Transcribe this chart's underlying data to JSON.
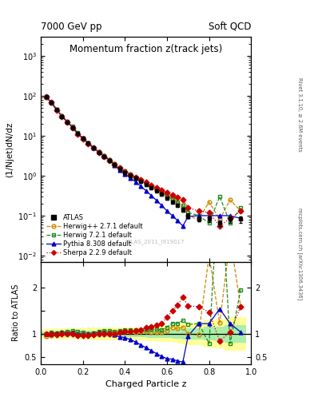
{
  "title": "Momentum fraction z(track jets)",
  "top_left_label": "7000 GeV pp",
  "top_right_label": "Soft QCD",
  "right_label_top": "Rivet 3.1.10, ≥ 2.6M events",
  "right_label_bottom": "mcplots.cern.ch [arXiv:1306.3436]",
  "watermark": "ATLAS_2011_I919017",
  "xlabel": "Charged Particle z",
  "ylabel_main": "(1/Njet)dN/dz",
  "ylabel_ratio": "Ratio to ATLAS",
  "atlas_x": [
    0.025,
    0.05,
    0.075,
    0.1,
    0.125,
    0.15,
    0.175,
    0.2,
    0.225,
    0.25,
    0.275,
    0.3,
    0.325,
    0.35,
    0.375,
    0.4,
    0.425,
    0.45,
    0.475,
    0.5,
    0.525,
    0.55,
    0.575,
    0.6,
    0.625,
    0.65,
    0.675,
    0.7,
    0.75,
    0.8,
    0.85,
    0.9,
    0.95
  ],
  "atlas_y": [
    95,
    68,
    45,
    30,
    22,
    16,
    11.5,
    8.5,
    6.5,
    5.0,
    3.8,
    3.0,
    2.4,
    1.9,
    1.5,
    1.2,
    1.0,
    0.85,
    0.72,
    0.6,
    0.5,
    0.42,
    0.35,
    0.28,
    0.22,
    0.18,
    0.14,
    0.1,
    0.082,
    0.082,
    0.065,
    0.082,
    0.082
  ],
  "atlas_yerr": [
    5,
    3.5,
    2.5,
    1.8,
    1.2,
    0.9,
    0.65,
    0.5,
    0.4,
    0.32,
    0.25,
    0.2,
    0.16,
    0.13,
    0.1,
    0.08,
    0.07,
    0.06,
    0.05,
    0.04,
    0.04,
    0.03,
    0.03,
    0.025,
    0.02,
    0.018,
    0.015,
    0.012,
    0.01,
    0.012,
    0.01,
    0.015,
    0.015
  ],
  "herwig_pp_x": [
    0.025,
    0.05,
    0.075,
    0.1,
    0.125,
    0.15,
    0.175,
    0.2,
    0.225,
    0.25,
    0.275,
    0.3,
    0.325,
    0.35,
    0.375,
    0.4,
    0.425,
    0.45,
    0.475,
    0.5,
    0.525,
    0.55,
    0.575,
    0.6,
    0.625,
    0.65,
    0.675,
    0.7,
    0.75,
    0.8,
    0.85,
    0.9,
    0.95
  ],
  "herwig_pp_y": [
    90,
    65,
    44,
    31,
    22,
    16,
    11,
    8.5,
    6.5,
    5.0,
    3.9,
    3.1,
    2.5,
    1.95,
    1.55,
    1.25,
    1.05,
    0.88,
    0.75,
    0.63,
    0.52,
    0.43,
    0.36,
    0.3,
    0.25,
    0.2,
    0.16,
    0.1,
    0.08,
    0.22,
    0.08,
    0.25,
    0.13
  ],
  "herwig7_x": [
    0.025,
    0.05,
    0.075,
    0.1,
    0.125,
    0.15,
    0.175,
    0.2,
    0.225,
    0.25,
    0.275,
    0.3,
    0.325,
    0.35,
    0.375,
    0.4,
    0.425,
    0.45,
    0.475,
    0.5,
    0.525,
    0.55,
    0.575,
    0.6,
    0.625,
    0.65,
    0.675,
    0.7,
    0.75,
    0.8,
    0.85,
    0.9,
    0.95
  ],
  "herwig7_y": [
    95,
    70,
    46,
    31,
    23,
    17,
    12,
    8.8,
    6.5,
    5.1,
    4.0,
    3.2,
    2.55,
    2.0,
    1.6,
    1.3,
    1.08,
    0.92,
    0.78,
    0.65,
    0.55,
    0.46,
    0.38,
    0.32,
    0.27,
    0.22,
    0.18,
    0.12,
    0.1,
    0.065,
    0.3,
    0.065,
    0.16
  ],
  "pythia_x": [
    0.025,
    0.05,
    0.075,
    0.1,
    0.125,
    0.15,
    0.175,
    0.2,
    0.225,
    0.25,
    0.275,
    0.3,
    0.325,
    0.35,
    0.375,
    0.4,
    0.425,
    0.45,
    0.475,
    0.5,
    0.525,
    0.55,
    0.575,
    0.6,
    0.625,
    0.65,
    0.675,
    0.7,
    0.75,
    0.8,
    0.85,
    0.9,
    0.95
  ],
  "pythia_y": [
    95,
    68,
    46,
    31,
    22.5,
    16.5,
    11.5,
    8.5,
    6.5,
    5.1,
    3.9,
    3.1,
    2.45,
    1.85,
    1.4,
    1.1,
    0.88,
    0.7,
    0.55,
    0.42,
    0.32,
    0.24,
    0.18,
    0.13,
    0.1,
    0.075,
    0.055,
    0.095,
    0.1,
    0.1,
    0.1,
    0.1,
    0.085
  ],
  "sherpa_x": [
    0.025,
    0.05,
    0.075,
    0.1,
    0.125,
    0.15,
    0.175,
    0.2,
    0.225,
    0.25,
    0.275,
    0.3,
    0.325,
    0.35,
    0.375,
    0.4,
    0.425,
    0.45,
    0.475,
    0.5,
    0.525,
    0.55,
    0.575,
    0.6,
    0.625,
    0.65,
    0.675,
    0.7,
    0.75,
    0.8,
    0.85,
    0.9,
    0.95
  ],
  "sherpa_y": [
    95,
    68,
    44,
    30,
    22,
    16,
    11,
    8.2,
    6.3,
    4.9,
    3.8,
    3.0,
    2.4,
    1.9,
    1.55,
    1.25,
    1.05,
    0.9,
    0.78,
    0.68,
    0.58,
    0.5,
    0.43,
    0.38,
    0.33,
    0.29,
    0.25,
    0.16,
    0.13,
    0.12,
    0.055,
    0.085,
    0.13
  ],
  "atlas_color": "#000000",
  "herwig_pp_color": "#cc8800",
  "herwig7_color": "#228b22",
  "pythia_color": "#0000cc",
  "sherpa_color": "#cc0000",
  "band_yellow": "#ffff99",
  "band_green": "#aaeeaa",
  "xlim": [
    0.0,
    1.0
  ],
  "ylim_main": [
    0.007,
    3000
  ],
  "ylim_ratio": [
    0.35,
    2.55
  ],
  "ratio_yticks": [
    0.5,
    1.0,
    1.5,
    2.0
  ],
  "ratio_yticklabels": [
    "0.5",
    "1",
    "",
    "2"
  ]
}
